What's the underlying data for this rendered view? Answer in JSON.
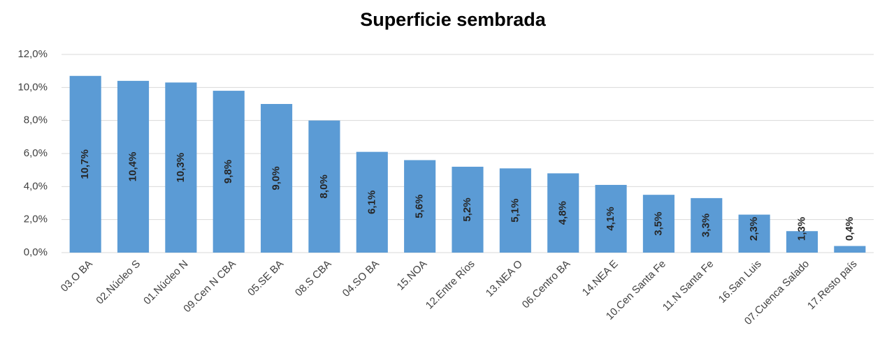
{
  "chart_data": {
    "type": "bar",
    "title": "Superficie sembrada",
    "categories": [
      "03.O BA",
      "02.Núcleo S",
      "01.Núcleo N",
      "09.Cen N CBA",
      "05.SE BA",
      "08.S CBA",
      "04.SO BA",
      "15.NOA",
      "12.Entre Ríos",
      "13.NEA O",
      "06.Centro BA",
      "14.NEA E",
      "10.Cen Santa Fe",
      "11.N Santa Fe",
      "16.San Luis",
      "07.Cuenca Salado",
      "17.Resto país"
    ],
    "values": [
      10.7,
      10.4,
      10.3,
      9.8,
      9.0,
      8.0,
      6.1,
      5.6,
      5.2,
      5.1,
      4.8,
      4.1,
      3.5,
      3.3,
      2.3,
      1.3,
      0.4
    ],
    "value_labels": [
      "10,7%",
      "10,4%",
      "10,3%",
      "9,8%",
      "9,0%",
      "8,0%",
      "6,1%",
      "5,6%",
      "5,2%",
      "5,1%",
      "4,8%",
      "4,1%",
      "3,5%",
      "3,3%",
      "2,3%",
      "1,3%",
      "0,4%"
    ],
    "color": "#5b9bd5",
    "ylim": [
      0,
      12
    ],
    "yticks": [
      {
        "value": 0,
        "label": "0,0%"
      },
      {
        "value": 2,
        "label": "2,0%"
      },
      {
        "value": 4,
        "label": "4,0%"
      },
      {
        "value": 6,
        "label": "6,0%"
      },
      {
        "value": 8,
        "label": "8,0%"
      },
      {
        "value": 10,
        "label": "10,0%"
      },
      {
        "value": 12,
        "label": "12,0%"
      }
    ],
    "grid": true
  }
}
